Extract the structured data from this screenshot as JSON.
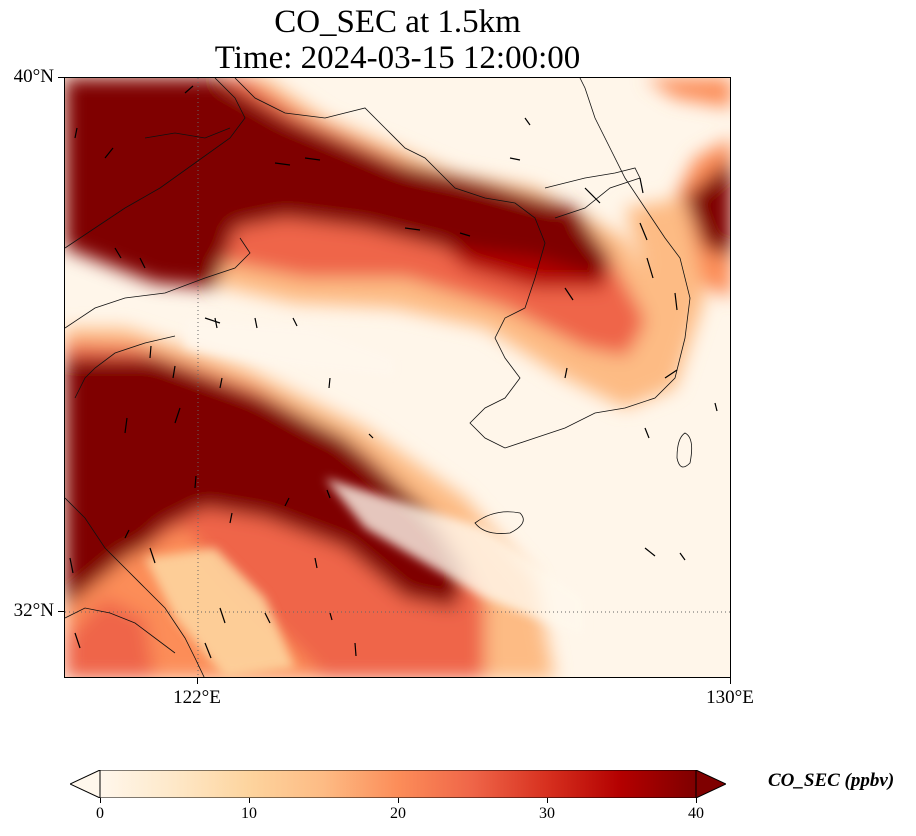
{
  "title": {
    "line1": "CO_SEC at 1.5km",
    "line2": "Time: 2024-03-15 12:00:00"
  },
  "axes": {
    "lat_labels": [
      "40°N",
      "32°N"
    ],
    "lon_labels": [
      "122°E",
      "130°E"
    ]
  },
  "map_data": {
    "variable": "CO_SEC",
    "level": "1.5km",
    "units": "ppbv",
    "time": "2024-03-15 12:00:00",
    "lon_range": [
      120,
      130
    ],
    "lat_range": [
      31,
      40
    ],
    "gridlines": {
      "lon": [
        122
      ],
      "lat": [
        32
      ],
      "style": "dotted"
    },
    "colormap": "OrRd",
    "value_range": [
      0,
      40
    ],
    "wind_vectors": true,
    "features": [
      "coastlines",
      "borders"
    ],
    "plumes": [
      {
        "description_value_ppbv": 40,
        "region": "northwest band"
      },
      {
        "description_value_ppbv": 40,
        "region": "southwest band"
      },
      {
        "description_value_ppbv": 40,
        "region": "northeast corner"
      }
    ]
  },
  "colorbar": {
    "label": "CO_SEC (ppbv)",
    "ticks": [
      "0",
      "10",
      "20",
      "30",
      "40"
    ],
    "tick_values": [
      0,
      10,
      20,
      30,
      40
    ],
    "extend": "both",
    "colors": [
      "#fff7ec",
      "#fee8c8",
      "#fdd49e",
      "#fdbb84",
      "#fc8d59",
      "#ef6548",
      "#d7301f",
      "#b30000",
      "#7f0000"
    ]
  }
}
